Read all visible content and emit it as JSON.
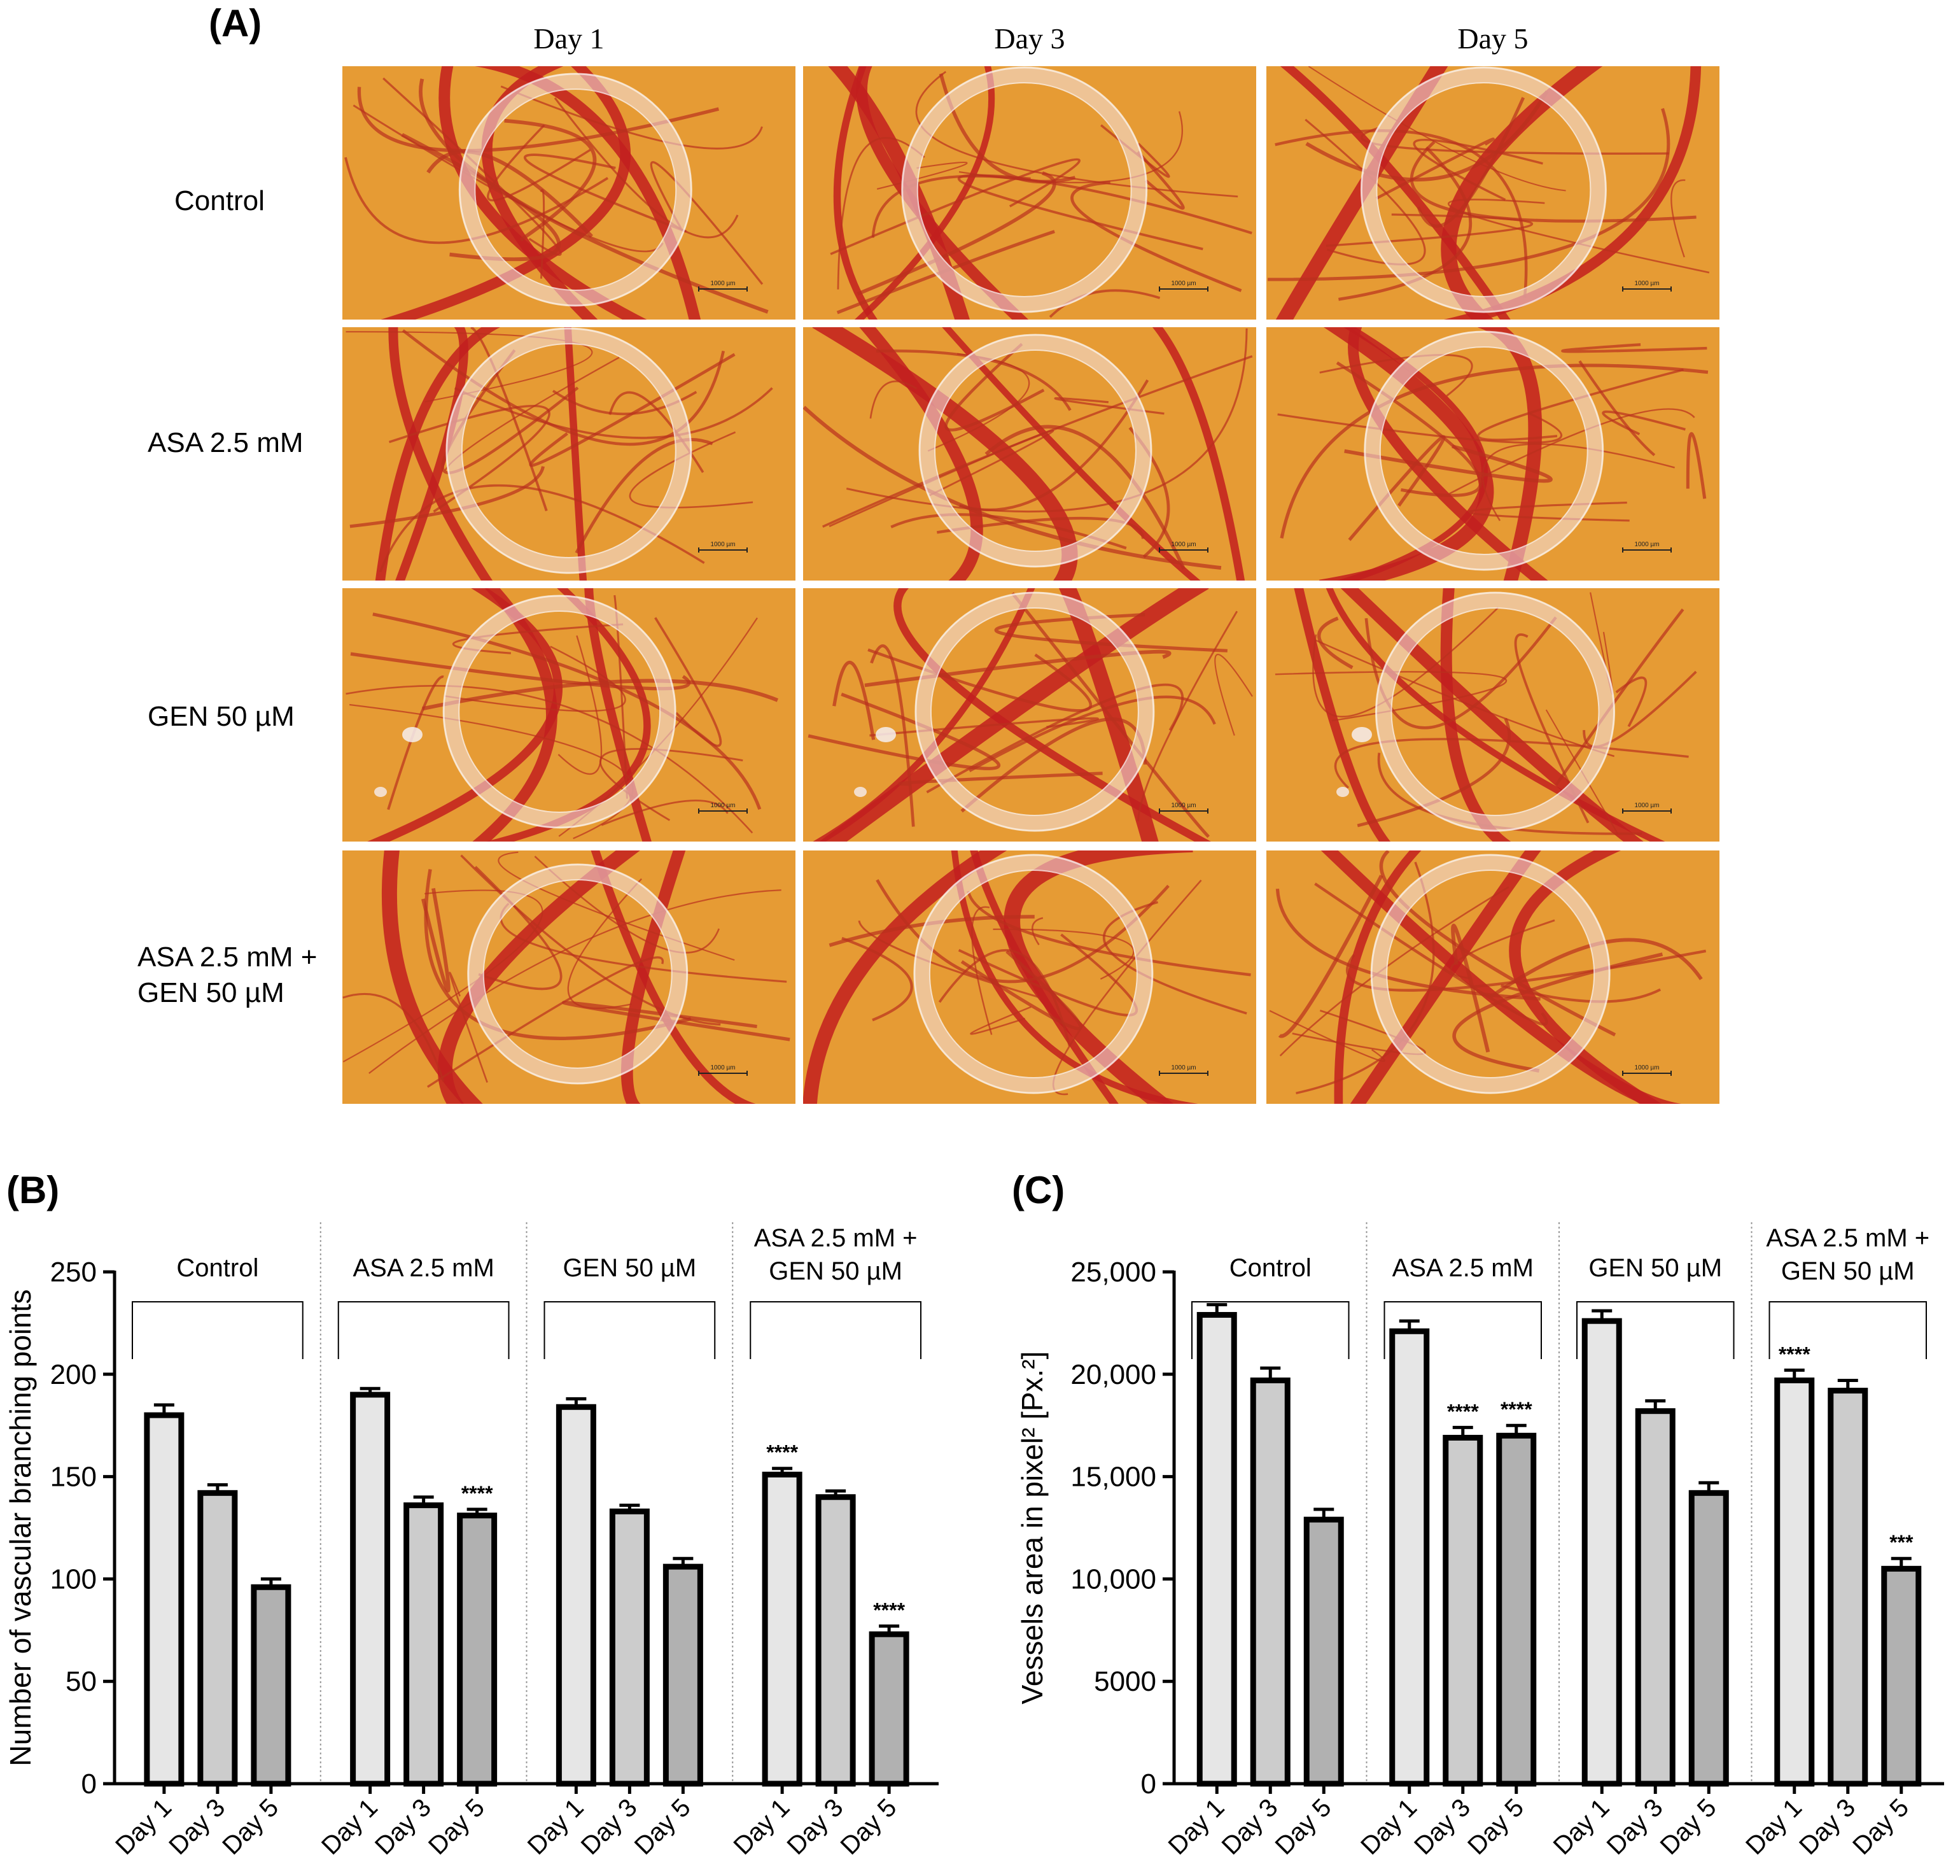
{
  "panel_a": {
    "label": "(A)",
    "columns": [
      "Day 1",
      "Day 3",
      "Day 5"
    ],
    "rows": [
      {
        "lines": [
          "Control"
        ]
      },
      {
        "lines": [
          "ASA 2.5 mM"
        ]
      },
      {
        "lines": [
          "GEN 50 µM"
        ]
      },
      {
        "lines": [
          "ASA 2.5 mM +",
          "GEN 50 µM"
        ]
      }
    ],
    "scale_bar_label": "1000 µm"
  },
  "colors": {
    "bar_day1": "#e6e6e6",
    "bar_day3": "#cccccc",
    "bar_day5": "#b1b1b1",
    "membrane_bg": "#e2952c",
    "vessel": "#c21f1f"
  },
  "chart_data": [
    {
      "panel_label": "(B)",
      "type": "bar",
      "ylabel": "Number of vascular branching points",
      "ylim": [
        0,
        250
      ],
      "yticks": [
        0,
        50,
        100,
        150,
        200,
        250
      ],
      "ytick_labels": [
        "0",
        "50",
        "100",
        "150",
        "200",
        "250"
      ],
      "tick_labels": [
        "Day 1",
        "Day 3",
        "Day 5"
      ],
      "groups": [
        {
          "lines": [
            "Control"
          ],
          "values": [
            180,
            142,
            96
          ],
          "errors": [
            5,
            4,
            4
          ],
          "stars": [
            "",
            "",
            ""
          ]
        },
        {
          "lines": [
            "ASA 2.5 mM"
          ],
          "values": [
            190,
            136,
            131
          ],
          "errors": [
            3,
            4,
            3
          ],
          "stars": [
            "",
            "",
            "****"
          ]
        },
        {
          "lines": [
            "GEN 50 µM"
          ],
          "values": [
            184,
            133,
            106
          ],
          "errors": [
            4,
            3,
            4
          ],
          "stars": [
            "",
            "",
            ""
          ]
        },
        {
          "lines": [
            "ASA 2.5 mM +",
            "GEN 50 µM"
          ],
          "values": [
            151,
            140,
            73
          ],
          "errors": [
            3,
            3,
            4
          ],
          "stars": [
            "****",
            "",
            "****"
          ]
        }
      ]
    },
    {
      "panel_label": "(C)",
      "type": "bar",
      "ylabel": "Vessels area in pixel² [Px.²]",
      "ylim": [
        0,
        25000
      ],
      "yticks": [
        0,
        5000,
        10000,
        15000,
        20000,
        25000
      ],
      "ytick_labels": [
        "0",
        "5000",
        "10,000",
        "15,000",
        "20,000",
        "25,000"
      ],
      "tick_labels": [
        "Day 1",
        "Day 3",
        "Day 5"
      ],
      "groups": [
        {
          "lines": [
            "Control"
          ],
          "values": [
            22900,
            19700,
            12900
          ],
          "errors": [
            500,
            600,
            500
          ],
          "stars": [
            "",
            "",
            ""
          ]
        },
        {
          "lines": [
            "ASA 2.5 mM"
          ],
          "values": [
            22100,
            16900,
            17000
          ],
          "errors": [
            500,
            500,
            500
          ],
          "stars": [
            "",
            "****",
            "****"
          ]
        },
        {
          "lines": [
            "GEN 50 µM"
          ],
          "values": [
            22600,
            18200,
            14200
          ],
          "errors": [
            500,
            500,
            500
          ],
          "stars": [
            "",
            "",
            ""
          ]
        },
        {
          "lines": [
            "ASA 2.5 mM +",
            "GEN 50 µM"
          ],
          "values": [
            19700,
            19200,
            10500
          ],
          "errors": [
            500,
            500,
            500
          ],
          "stars": [
            "****",
            "",
            "***"
          ]
        }
      ]
    }
  ]
}
